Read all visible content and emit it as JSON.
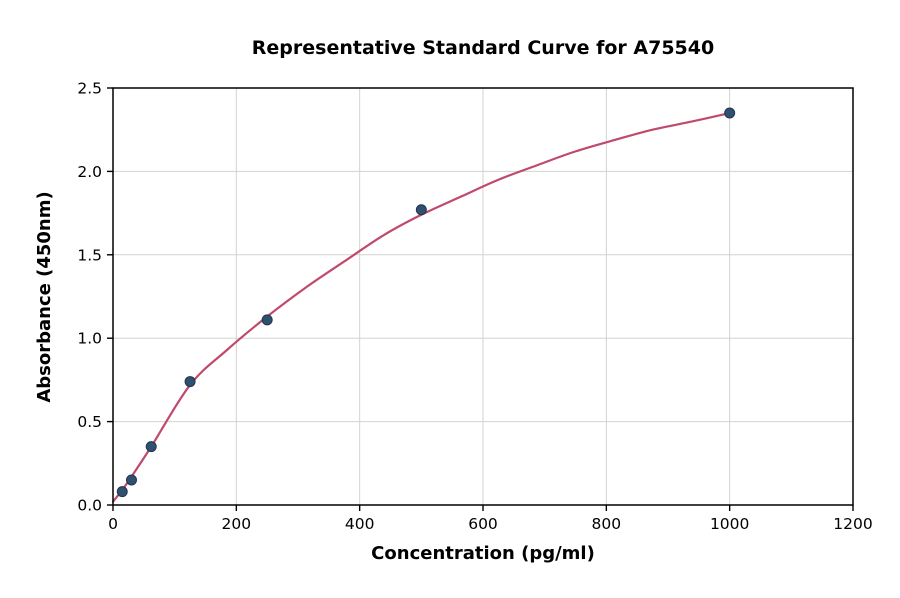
{
  "chart_data": {
    "type": "scatter",
    "title": "Representative Standard Curve for A75540",
    "xlabel": "Concentration (pg/ml)",
    "ylabel": "Absorbance (450nm)",
    "xlim": [
      0,
      1200
    ],
    "ylim": [
      0,
      2.5
    ],
    "grid": true,
    "legend": "none",
    "x_ticks": [
      0,
      200,
      400,
      600,
      800,
      1000,
      1200
    ],
    "x_tick_labels": [
      "0",
      "200",
      "400",
      "600",
      "800",
      "1000",
      "1200"
    ],
    "y_ticks": [
      0.0,
      0.5,
      1.0,
      1.5,
      2.0,
      2.5
    ],
    "y_tick_labels": [
      "0.0",
      "0.5",
      "1.0",
      "1.5",
      "2.0",
      "2.5"
    ],
    "points": [
      [
        15,
        0.08
      ],
      [
        30,
        0.15
      ],
      [
        62,
        0.35
      ],
      [
        125,
        0.74
      ],
      [
        250,
        1.11
      ],
      [
        500,
        1.77
      ],
      [
        1000,
        2.35
      ]
    ],
    "curve": [
      [
        0,
        0.02
      ],
      [
        15,
        0.09
      ],
      [
        30,
        0.17
      ],
      [
        62,
        0.35
      ],
      [
        125,
        0.72
      ],
      [
        185,
        0.93
      ],
      [
        250,
        1.13
      ],
      [
        315,
        1.31
      ],
      [
        375,
        1.46
      ],
      [
        440,
        1.62
      ],
      [
        500,
        1.74
      ],
      [
        565,
        1.85
      ],
      [
        625,
        1.95
      ],
      [
        690,
        2.04
      ],
      [
        750,
        2.12
      ],
      [
        815,
        2.19
      ],
      [
        875,
        2.25
      ],
      [
        940,
        2.3
      ],
      [
        1000,
        2.35
      ]
    ],
    "colors": {
      "curve": "#c04a6b",
      "point": "#30506f",
      "point_edge": "#1f3550",
      "grid": "#d3d3d3",
      "axis": "#000000"
    }
  }
}
